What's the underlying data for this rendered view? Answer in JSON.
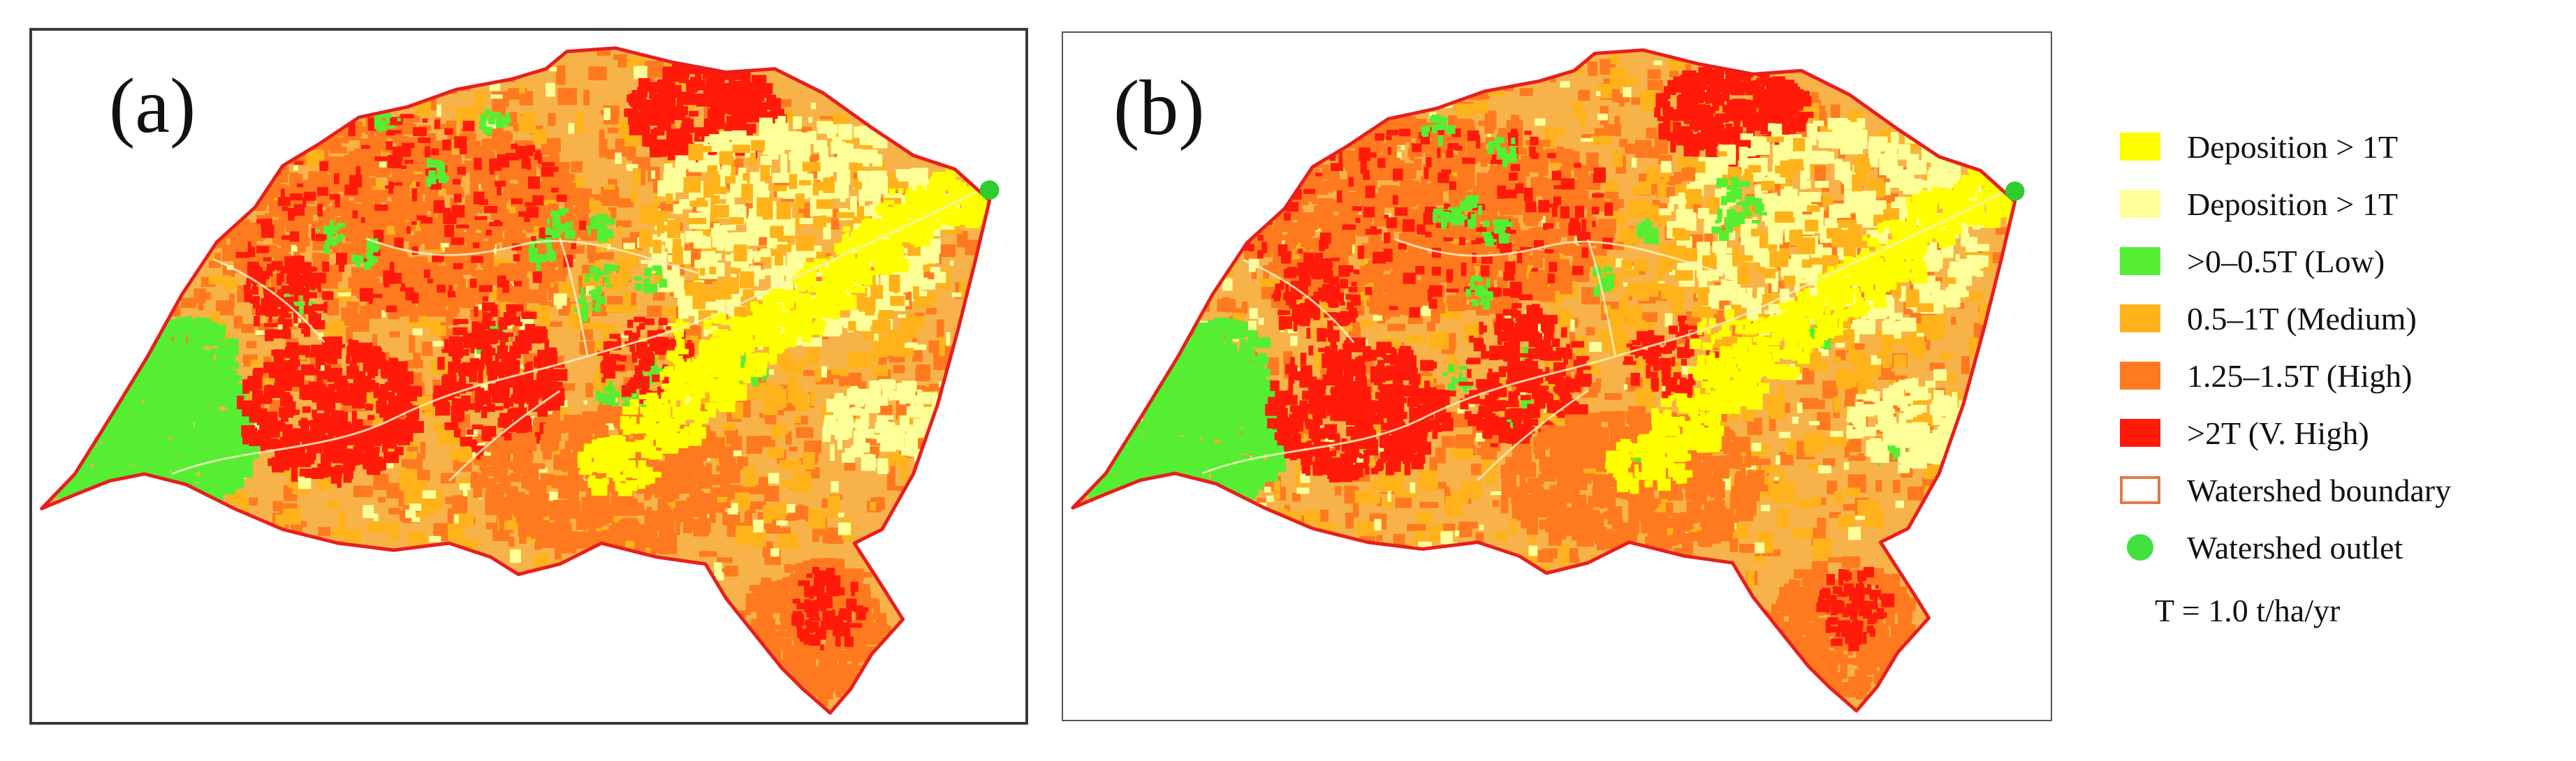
{
  "panels": [
    {
      "label": "(a)"
    },
    {
      "label": "(b)"
    }
  ],
  "legend": {
    "items": [
      {
        "label": "Deposition > 1T",
        "color": "#ffff00",
        "type": "box"
      },
      {
        "label": "Deposition > 1T",
        "color": "#ffff99",
        "type": "box"
      },
      {
        "label": ">0–0.5T (Low)",
        "color": "#55ee33",
        "type": "box"
      },
      {
        "label": "0.5–1T (Medium)",
        "color": "#ffb21a",
        "type": "box"
      },
      {
        "label": "1.25–1.5T (High)",
        "color": "#ff7a1f",
        "type": "box"
      },
      {
        "label": ">2T (V. High)",
        "color": "#ff1a0a",
        "type": "box"
      },
      {
        "label": "Watershed boundary",
        "color": "#e07a4a",
        "type": "outline"
      },
      {
        "label": "Watershed outlet",
        "color": "#3fe03f",
        "type": "dot"
      }
    ],
    "t_definition": "T = 1.0 t/ha/yr"
  },
  "colors": {
    "boundary": "#e81e1e",
    "stream": "#f4f0c0",
    "outlet": "#2ecc2e",
    "medium_background": "#f7b34a"
  }
}
